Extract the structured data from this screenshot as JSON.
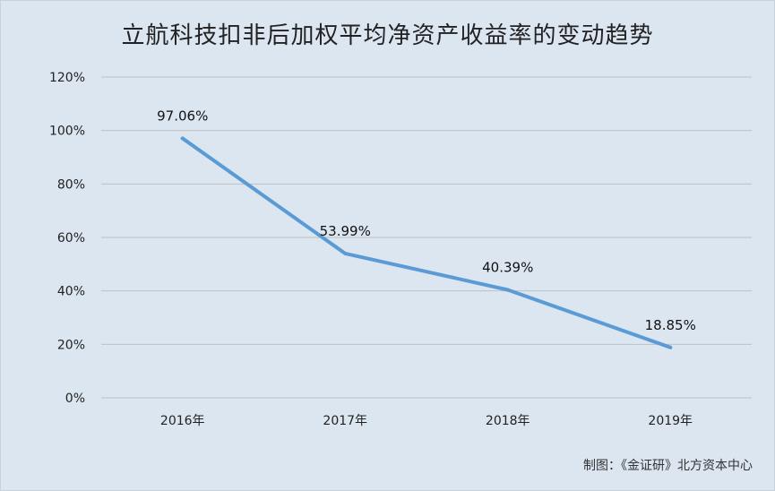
{
  "chart_data": {
    "type": "line",
    "title": "立航科技扣非后加权平均净资产收益率的变动趋势",
    "categories": [
      "2016年",
      "2017年",
      "2018年",
      "2019年"
    ],
    "series": [
      {
        "values": [
          97.06,
          53.99,
          40.39,
          18.85
        ]
      }
    ],
    "data_labels": [
      "97.06%",
      "53.99%",
      "40.39%",
      "18.85%"
    ],
    "yticks": [
      "0%",
      "20%",
      "40%",
      "60%",
      "80%",
      "100%",
      "120%"
    ],
    "ylim": [
      0,
      120
    ],
    "grid": true,
    "legend": "none",
    "line_color": "#5b9bd5",
    "grid_color": "#c0c0c0",
    "source": "制图：《金证研》北方资本中心"
  }
}
